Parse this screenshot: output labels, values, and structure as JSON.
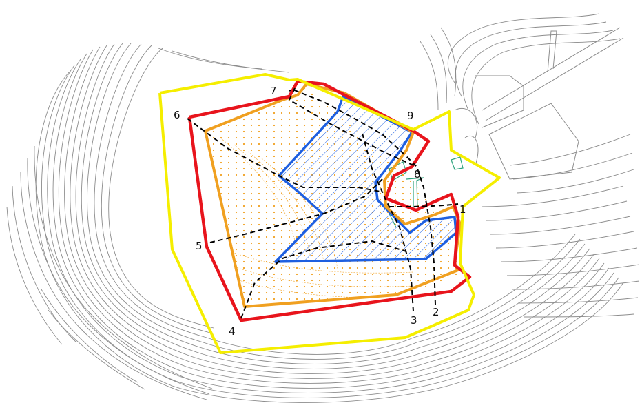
{
  "map": {
    "point_labels": [
      "1",
      "2",
      "3",
      "4",
      "5",
      "6",
      "7",
      "8",
      "9"
    ],
    "colors": {
      "site_boundary": "#f5ee00",
      "outer_boundary": "#e8141c",
      "inner_boundary": "#f0a020",
      "fill_area": "#1e5fe0",
      "contours": "#8c8c8c",
      "structure": "#2ca37d",
      "section_lines": "#000000"
    }
  }
}
